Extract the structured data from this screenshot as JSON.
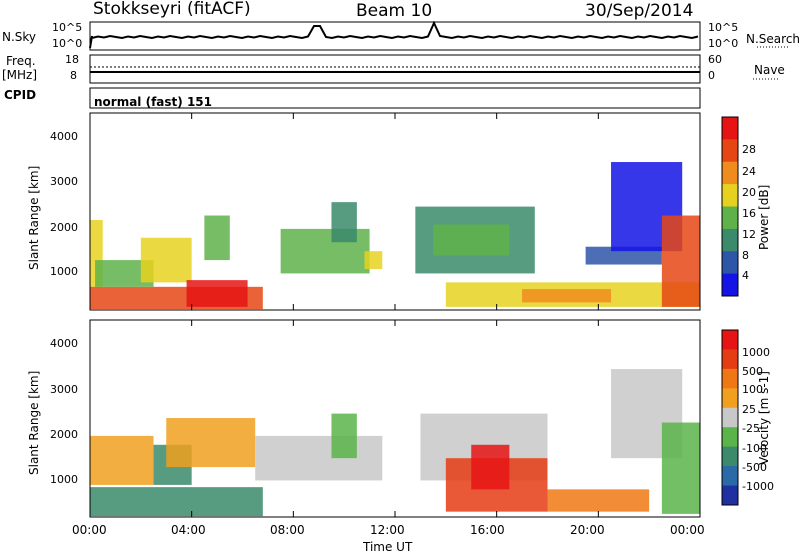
{
  "header": {
    "station": "Stokkseyri (fitACF)",
    "beam": "Beam 10",
    "date": "30/Sep/2014"
  },
  "left_labels": {
    "nsky": "N.Sky",
    "freq": "Freq.",
    "mhz": "[MHz]",
    "cpid": "CPID",
    "nsky_hi": "10^5",
    "nsky_lo": "10^0",
    "freq_hi": "18",
    "freq_lo": "8"
  },
  "right_labels": {
    "nsearch": "N.Search",
    "nave": "Nave",
    "ns_hi": "10^5",
    "ns_lo": "10^0",
    "nave_hi": "60",
    "nave_lo": "0"
  },
  "cpid_text": "normal (fast) 151",
  "x_axis": {
    "label": "Time UT",
    "ticks": [
      "00:00",
      "04:00",
      "08:00",
      "12:00",
      "16:00",
      "20:00",
      "00:00"
    ]
  },
  "power_panel": {
    "ylabel": "Slant Range [km]",
    "yticks": [
      "1000",
      "2000",
      "3000",
      "4000"
    ],
    "colorbar_label": "Power [dB]",
    "colorbar_ticks": [
      "4",
      "8",
      "12",
      "16",
      "20",
      "24",
      "28"
    ],
    "colors": [
      "#1414e6",
      "#2d55a8",
      "#3a8a6b",
      "#5fb24a",
      "#e6d21e",
      "#f08c1e",
      "#e64614",
      "#e61414"
    ]
  },
  "velocity_panel": {
    "ylabel": "Slant Range [km]",
    "yticks": [
      "1000",
      "2000",
      "3000",
      "4000"
    ],
    "colorbar_label": "Velocity [m s-1]",
    "colorbar_ticks": [
      "1000",
      "500",
      "100",
      "25",
      "-25",
      "-100",
      "-500",
      "-1000"
    ],
    "colors": [
      "#2030a0",
      "#2a6aa8",
      "#3a8a6b",
      "#5ab44a",
      "#c8c8c8",
      "#f0a01e",
      "#f07814",
      "#e63c14",
      "#e61414"
    ]
  },
  "chart_data": {
    "type": "heatmap",
    "x_range_hours": [
      0,
      24
    ],
    "y_range_km": [
      180,
      4600
    ],
    "power_regions": [
      {
        "t": [
          0.0,
          0.5
        ],
        "r": [
          700,
          2200
        ],
        "level": 4
      },
      {
        "t": [
          0.0,
          6.8
        ],
        "r": [
          200,
          700
        ],
        "level": 6
      },
      {
        "t": [
          0.2,
          2.5
        ],
        "r": [
          700,
          1300
        ],
        "level": 3
      },
      {
        "t": [
          2.0,
          4.0
        ],
        "r": [
          800,
          1800
        ],
        "level": 4
      },
      {
        "t": [
          3.8,
          6.2
        ],
        "r": [
          250,
          850
        ],
        "level": 7
      },
      {
        "t": [
          4.5,
          5.5
        ],
        "r": [
          1300,
          2300
        ],
        "level": 3
      },
      {
        "t": [
          7.5,
          11.0
        ],
        "r": [
          1000,
          2000
        ],
        "level": 3
      },
      {
        "t": [
          9.5,
          10.5
        ],
        "r": [
          1700,
          2600
        ],
        "level": 2
      },
      {
        "t": [
          10.8,
          11.5
        ],
        "r": [
          1100,
          1500
        ],
        "level": 4
      },
      {
        "t": [
          12.8,
          17.5
        ],
        "r": [
          1000,
          2500
        ],
        "level": 2
      },
      {
        "t": [
          13.5,
          16.5
        ],
        "r": [
          1400,
          2100
        ],
        "level": 3
      },
      {
        "t": [
          14.0,
          24.0
        ],
        "r": [
          250,
          800
        ],
        "level": 4
      },
      {
        "t": [
          17.0,
          20.5
        ],
        "r": [
          350,
          650
        ],
        "level": 5
      },
      {
        "t": [
          19.5,
          22.5
        ],
        "r": [
          1200,
          1600
        ],
        "level": 1
      },
      {
        "t": [
          20.5,
          23.3
        ],
        "r": [
          1500,
          3500
        ],
        "level": 0
      },
      {
        "t": [
          22.5,
          24.0
        ],
        "r": [
          250,
          2300
        ],
        "level": 6
      }
    ],
    "velocity_regions": [
      {
        "t": [
          0.0,
          6.8
        ],
        "r": [
          200,
          850
        ],
        "level": 2
      },
      {
        "t": [
          0.0,
          2.5
        ],
        "r": [
          900,
          2000
        ],
        "level": 5
      },
      {
        "t": [
          2.5,
          4.0
        ],
        "r": [
          900,
          1800
        ],
        "level": 2
      },
      {
        "t": [
          3.0,
          6.5
        ],
        "r": [
          1300,
          2400
        ],
        "level": 5
      },
      {
        "t": [
          6.5,
          11.5
        ],
        "r": [
          1000,
          2000
        ],
        "level": 4
      },
      {
        "t": [
          9.5,
          10.5
        ],
        "r": [
          1500,
          2500
        ],
        "level": 3
      },
      {
        "t": [
          13.0,
          18.0
        ],
        "r": [
          1000,
          2500
        ],
        "level": 4
      },
      {
        "t": [
          14.0,
          18.0
        ],
        "r": [
          300,
          1500
        ],
        "level": 7
      },
      {
        "t": [
          15.0,
          16.5
        ],
        "r": [
          800,
          1800
        ],
        "level": 8
      },
      {
        "t": [
          18.0,
          22.0
        ],
        "r": [
          300,
          800
        ],
        "level": 6
      },
      {
        "t": [
          20.5,
          23.3
        ],
        "r": [
          1500,
          3500
        ],
        "level": 4
      },
      {
        "t": [
          22.5,
          24.0
        ],
        "r": [
          250,
          2300
        ],
        "level": 3
      }
    ]
  }
}
